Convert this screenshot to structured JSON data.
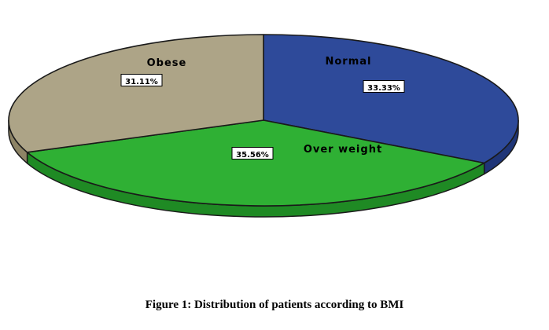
{
  "figure": {
    "caption": "Figure 1: Distribution of patients according to BMI"
  },
  "chart_data": {
    "type": "pie",
    "title": "",
    "slices": [
      {
        "name": "Normal",
        "label": "33.33%",
        "value": 33.33,
        "color": "#2E4A9A",
        "side_color": "#1F3577"
      },
      {
        "name": "Over weight",
        "label": "35.56%",
        "value": 35.56,
        "color": "#2FB034",
        "side_color": "#1F8A24"
      },
      {
        "name": "Obese",
        "label": "31.11%",
        "value": 31.11,
        "color": "#ADA487",
        "side_color": "#8D8466"
      }
    ],
    "edge_color": "#1a1a1a"
  }
}
